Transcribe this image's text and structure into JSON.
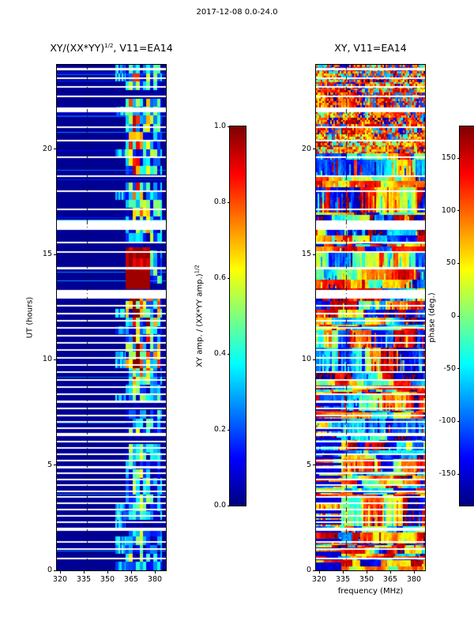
{
  "figure": {
    "title": "2017-12-08 0.0-24.0"
  },
  "chart_data": [
    {
      "type": "heatmap",
      "title_base": "XY/(XX*YY)",
      "title_sup": "1/2",
      "title_rest": ", V11=EA14",
      "xlabel": "frequency (MHz)",
      "ylabel": "UT (hours)",
      "x_range_mhz": [
        318,
        387
      ],
      "y_range_hours": [
        0,
        24
      ],
      "x_ticks": [
        320,
        335,
        350,
        365,
        380
      ],
      "y_ticks": [
        0,
        5,
        10,
        15,
        20
      ],
      "colormap": "jet",
      "colorbar": {
        "label_base": "XY amp. / (XX*YY amp.)",
        "label_sup": "1/2",
        "range": [
          0,
          1
        ],
        "ticks": [
          "1.0",
          "0.8",
          "0.6",
          "0.4",
          "0.2",
          "0.0"
        ]
      },
      "description": "Cross-correlation amplitude ratio vs UT and frequency; background near 0 (dark blue), active signal band ~362-384 MHz with blocky cells 0.2-1.0, saturated red region 13.4-15.3 UT, white horizontal rows are data gaps.",
      "features": {
        "background_value": 0.02,
        "active_band_mhz": [
          361.5,
          384.5
        ],
        "band_envelope": [
          0.5,
          0.85,
          0.95,
          0.9,
          0.8,
          0.65,
          0.75,
          0.6,
          0.55,
          0.6,
          0.45
        ],
        "weak_band_mhz": [
          355,
          361.5
        ],
        "saturated_blob": {
          "hours": [
            13.35,
            15.35
          ],
          "mhz_max": 377
        },
        "enhanced_hours": [
          9.5,
          12.9
        ],
        "vline_mhz": 337,
        "gap_hours": [
          [
            0.55,
            0.07
          ],
          [
            1.0,
            0.08
          ],
          [
            1.35,
            0.07
          ],
          [
            1.95,
            0.18
          ],
          [
            2.3,
            0.08
          ],
          [
            2.6,
            0.08
          ],
          [
            2.9,
            0.07
          ],
          [
            3.2,
            0.08
          ],
          [
            3.5,
            0.07
          ],
          [
            3.75,
            0.08
          ],
          [
            4.05,
            0.07
          ],
          [
            4.3,
            0.08
          ],
          [
            4.6,
            0.07
          ],
          [
            4.9,
            0.1
          ],
          [
            5.2,
            0.07
          ],
          [
            5.5,
            0.08
          ],
          [
            5.8,
            0.07
          ],
          [
            6.1,
            0.08
          ],
          [
            6.45,
            0.12
          ],
          [
            6.75,
            0.07
          ],
          [
            7.05,
            0.08
          ],
          [
            7.35,
            0.07
          ],
          [
            7.7,
            0.08
          ],
          [
            8.0,
            0.1
          ],
          [
            8.35,
            0.07
          ],
          [
            8.7,
            0.08
          ],
          [
            9.05,
            0.07
          ],
          [
            9.4,
            0.08
          ],
          [
            9.75,
            0.07
          ],
          [
            10.1,
            0.08
          ],
          [
            10.45,
            0.07
          ],
          [
            10.8,
            0.08
          ],
          [
            11.15,
            0.07
          ],
          [
            11.5,
            0.08
          ],
          [
            11.85,
            0.07
          ],
          [
            12.2,
            0.08
          ],
          [
            12.55,
            0.07
          ],
          [
            13.1,
            0.4
          ],
          [
            14.35,
            0.09
          ],
          [
            15.1,
            0.08
          ],
          [
            15.55,
            0.07
          ],
          [
            16.4,
            0.45
          ],
          [
            17.15,
            0.08
          ],
          [
            18.0,
            0.07
          ],
          [
            18.7,
            0.08
          ],
          [
            19.6,
            0.07
          ],
          [
            20.4,
            0.08
          ],
          [
            21.05,
            0.07
          ],
          [
            21.85,
            0.22
          ],
          [
            22.5,
            0.08
          ],
          [
            22.95,
            0.07
          ],
          [
            23.35,
            0.08
          ],
          [
            23.8,
            0.12
          ]
        ]
      }
    },
    {
      "type": "heatmap",
      "title": "XY, V11=EA14",
      "xlabel": "frequency (MHz)",
      "ylabel": "UT (hours)",
      "x_range_mhz": [
        318,
        387
      ],
      "y_range_hours": [
        0,
        24
      ],
      "x_ticks": [
        320,
        335,
        350,
        365,
        380
      ],
      "y_ticks": [
        0,
        5,
        10,
        15,
        20
      ],
      "colormap": "jet",
      "colorbar": {
        "label": "phase (deg.)",
        "range": [
          -180,
          180
        ],
        "ticks": [
          "150",
          "100",
          "50",
          "0",
          "-50",
          "-100",
          "-150"
        ]
      },
      "description": "Cross-correlation phase (degrees) vs UT and frequency; noise-like horizontally streaky structure over the full band, orange/red dominated near 20-24 UT, dark blue low-frequency cells near 0-8 UT, same white data-gap rows, vertical dash-dot marker near 337 MHz.",
      "features": {
        "vline_mhz": 337,
        "blue_bias": {
          "hours": [
            0,
            8
          ],
          "mhz_max": 334
        },
        "orange_bias_hours": [
          19.8,
          24
        ],
        "gaps": "shared with amplitude panel"
      }
    }
  ]
}
